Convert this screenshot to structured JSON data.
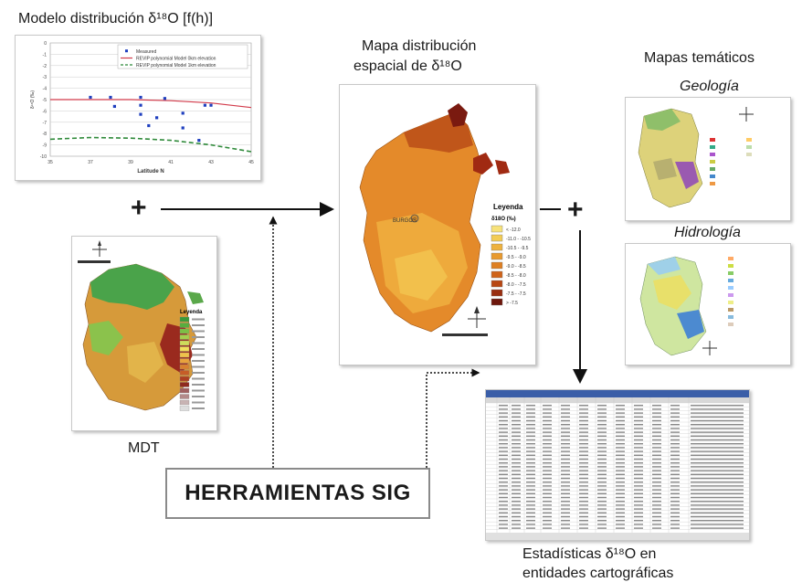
{
  "title_chart": "Modelo distribución δ¹⁸O [f(h)]",
  "title_map": [
    "Mapa distribución",
    "espacial de δ¹⁸O"
  ],
  "title_thematic": "Mapas temáticos",
  "label_geologia": "Geología",
  "label_hidrologia": "Hidrología",
  "label_mdt": "MDT",
  "label_sig": "HERRAMIENTAS SIG",
  "title_stats": [
    "Estadísticas δ¹⁸O en",
    "entidades cartográficas"
  ],
  "plus_sign": "+",
  "map_legend": {
    "title": "Leyenda",
    "subtitle": "δ18O (‰)",
    "city": "BURGOS",
    "items": [
      "< -12.0",
      "-11.0 - -10.5",
      "-10.5 - -9.5",
      "-9.5 - -9.0",
      "-9.0 - -8.5",
      "-8.5 - -8.0",
      "-8.0 - -7.5",
      "-7.5 - -7.5",
      "> -7.5"
    ],
    "colors": [
      "#f7e27a",
      "#f2cc55",
      "#eeb23f",
      "#e89a2f",
      "#de7f22",
      "#cf6319",
      "#b84713",
      "#992e10",
      "#6e170c"
    ]
  },
  "mdt_legend": {
    "title": "Leyenda",
    "colors": [
      "#3a9a3a",
      "#58ad3e",
      "#7cbf45",
      "#a4cf4e",
      "#cfdc5a",
      "#f1df5c",
      "#f0c24a",
      "#e8a33c",
      "#d9812f",
      "#c65d27",
      "#ad3f22",
      "#8e2a1f",
      "#a06060",
      "#b38a8a",
      "#c8b3b3",
      "#dddddd"
    ]
  },
  "chart_data": {
    "type": "scatter",
    "title": "",
    "xlabel": "Latitude N",
    "ylabel": "δ¹⁸O (‰)",
    "xlim": [
      35,
      45
    ],
    "ylim": [
      -10,
      0
    ],
    "xticks": [
      35,
      37,
      39,
      41,
      43,
      45
    ],
    "yticks": [
      0,
      -1,
      -2,
      -3,
      -4,
      -5,
      -6,
      -7,
      -8,
      -9,
      -10
    ],
    "legend": "top-right",
    "series": [
      {
        "name": "Measured",
        "kind": "points",
        "color": "#1f3fbf",
        "points": [
          [
            37,
            -4.8
          ],
          [
            38,
            -4.8
          ],
          [
            38.2,
            -5.6
          ],
          [
            39.5,
            -4.8
          ],
          [
            39.5,
            -5.5
          ],
          [
            39.5,
            -6.3
          ],
          [
            39.9,
            -7.3
          ],
          [
            40.3,
            -6.6
          ],
          [
            40.7,
            -4.9
          ],
          [
            41.6,
            -6.2
          ],
          [
            41.6,
            -7.5
          ],
          [
            42.4,
            -8.6
          ],
          [
            42.7,
            -5.5
          ],
          [
            43,
            -5.5
          ]
        ]
      },
      {
        "name": "REVIP polynomial Model 0km elevation",
        "kind": "line",
        "color": "#d23a4a",
        "points": [
          [
            35,
            -5.0
          ],
          [
            37,
            -5.0
          ],
          [
            39,
            -5.0
          ],
          [
            41,
            -5.1
          ],
          [
            43,
            -5.3
          ],
          [
            45,
            -5.7
          ]
        ]
      },
      {
        "name": "REVIP polynomial Model 1km elevation",
        "kind": "dashed",
        "color": "#2f8a3a",
        "points": [
          [
            35,
            -8.5
          ],
          [
            37,
            -8.35
          ],
          [
            39,
            -8.4
          ],
          [
            41,
            -8.6
          ],
          [
            43,
            -9.0
          ],
          [
            45,
            -9.6
          ]
        ]
      }
    ]
  }
}
